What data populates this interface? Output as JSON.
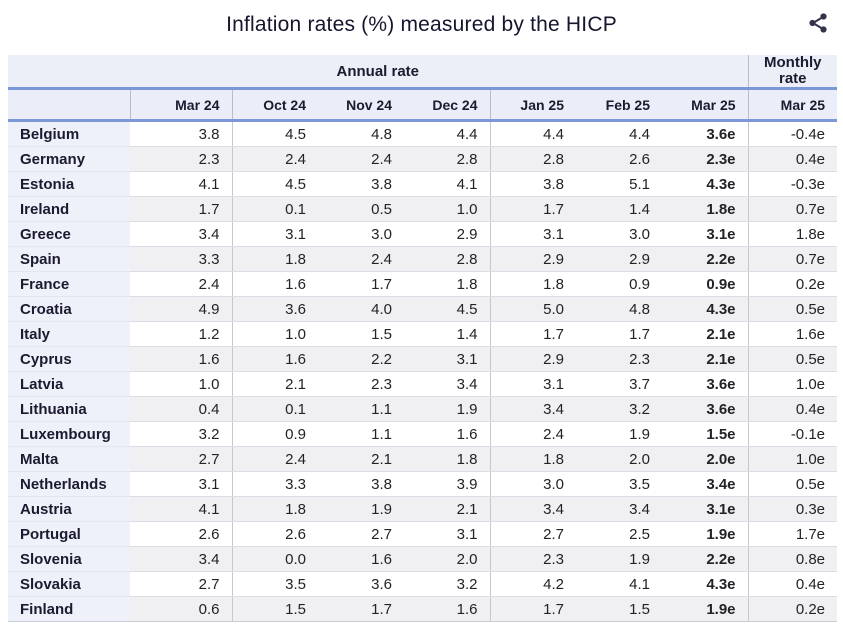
{
  "ui": {
    "share_icon": "share-icon"
  },
  "colors": {
    "accent_border_blue": "#7b97d8",
    "header_bg": "#eceef8",
    "country_col_bg": "#eff1fa",
    "stripe_bg": "#f0f0f2",
    "text_dark": "#1b1b30"
  },
  "chart_data": {
    "type": "table",
    "title": "Inflation rates (%) measured by the HICP",
    "group_headers": {
      "annual": "Annual rate",
      "monthly": "Monthly rate"
    },
    "annual_columns": [
      "Mar 24",
      "Oct 24",
      "Nov 24",
      "Dec 24",
      "Jan 25",
      "Feb 25",
      "Mar 25"
    ],
    "monthly_column": "Mar 25",
    "rows": [
      {
        "country": "Belgium",
        "annual": [
          "3.8",
          "4.5",
          "4.8",
          "4.4",
          "4.4",
          "4.4",
          "3.6e"
        ],
        "monthly": "-0.4e"
      },
      {
        "country": "Germany",
        "annual": [
          "2.3",
          "2.4",
          "2.4",
          "2.8",
          "2.8",
          "2.6",
          "2.3e"
        ],
        "monthly": "0.4e"
      },
      {
        "country": "Estonia",
        "annual": [
          "4.1",
          "4.5",
          "3.8",
          "4.1",
          "3.8",
          "5.1",
          "4.3e"
        ],
        "monthly": "-0.3e"
      },
      {
        "country": "Ireland",
        "annual": [
          "1.7",
          "0.1",
          "0.5",
          "1.0",
          "1.7",
          "1.4",
          "1.8e"
        ],
        "monthly": "0.7e"
      },
      {
        "country": "Greece",
        "annual": [
          "3.4",
          "3.1",
          "3.0",
          "2.9",
          "3.1",
          "3.0",
          "3.1e"
        ],
        "monthly": "1.8e"
      },
      {
        "country": "Spain",
        "annual": [
          "3.3",
          "1.8",
          "2.4",
          "2.8",
          "2.9",
          "2.9",
          "2.2e"
        ],
        "monthly": "0.7e"
      },
      {
        "country": "France",
        "annual": [
          "2.4",
          "1.6",
          "1.7",
          "1.8",
          "1.8",
          "0.9",
          "0.9e"
        ],
        "monthly": "0.2e"
      },
      {
        "country": "Croatia",
        "annual": [
          "4.9",
          "3.6",
          "4.0",
          "4.5",
          "5.0",
          "4.8",
          "4.3e"
        ],
        "monthly": "0.5e"
      },
      {
        "country": "Italy",
        "annual": [
          "1.2",
          "1.0",
          "1.5",
          "1.4",
          "1.7",
          "1.7",
          "2.1e"
        ],
        "monthly": "1.6e"
      },
      {
        "country": "Cyprus",
        "annual": [
          "1.6",
          "1.6",
          "2.2",
          "3.1",
          "2.9",
          "2.3",
          "2.1e"
        ],
        "monthly": "0.5e"
      },
      {
        "country": "Latvia",
        "annual": [
          "1.0",
          "2.1",
          "2.3",
          "3.4",
          "3.1",
          "3.7",
          "3.6e"
        ],
        "monthly": "1.0e"
      },
      {
        "country": "Lithuania",
        "annual": [
          "0.4",
          "0.1",
          "1.1",
          "1.9",
          "3.4",
          "3.2",
          "3.6e"
        ],
        "monthly": "0.4e"
      },
      {
        "country": "Luxembourg",
        "annual": [
          "3.2",
          "0.9",
          "1.1",
          "1.6",
          "2.4",
          "1.9",
          "1.5e"
        ],
        "monthly": "-0.1e"
      },
      {
        "country": "Malta",
        "annual": [
          "2.7",
          "2.4",
          "2.1",
          "1.8",
          "1.8",
          "2.0",
          "2.0e"
        ],
        "monthly": "1.0e"
      },
      {
        "country": "Netherlands",
        "annual": [
          "3.1",
          "3.3",
          "3.8",
          "3.9",
          "3.0",
          "3.5",
          "3.4e"
        ],
        "monthly": "0.5e"
      },
      {
        "country": "Austria",
        "annual": [
          "4.1",
          "1.8",
          "1.9",
          "2.1",
          "3.4",
          "3.4",
          "3.1e"
        ],
        "monthly": "0.3e"
      },
      {
        "country": "Portugal",
        "annual": [
          "2.6",
          "2.6",
          "2.7",
          "3.1",
          "2.7",
          "2.5",
          "1.9e"
        ],
        "monthly": "1.7e"
      },
      {
        "country": "Slovenia",
        "annual": [
          "3.4",
          "0.0",
          "1.6",
          "2.0",
          "2.3",
          "1.9",
          "2.2e"
        ],
        "monthly": "0.8e"
      },
      {
        "country": "Slovakia",
        "annual": [
          "2.7",
          "3.5",
          "3.6",
          "3.2",
          "4.2",
          "4.1",
          "4.3e"
        ],
        "monthly": "0.4e"
      },
      {
        "country": "Finland",
        "annual": [
          "0.6",
          "1.5",
          "1.7",
          "1.6",
          "1.7",
          "1.5",
          "1.9e"
        ],
        "monthly": "0.2e"
      }
    ]
  }
}
